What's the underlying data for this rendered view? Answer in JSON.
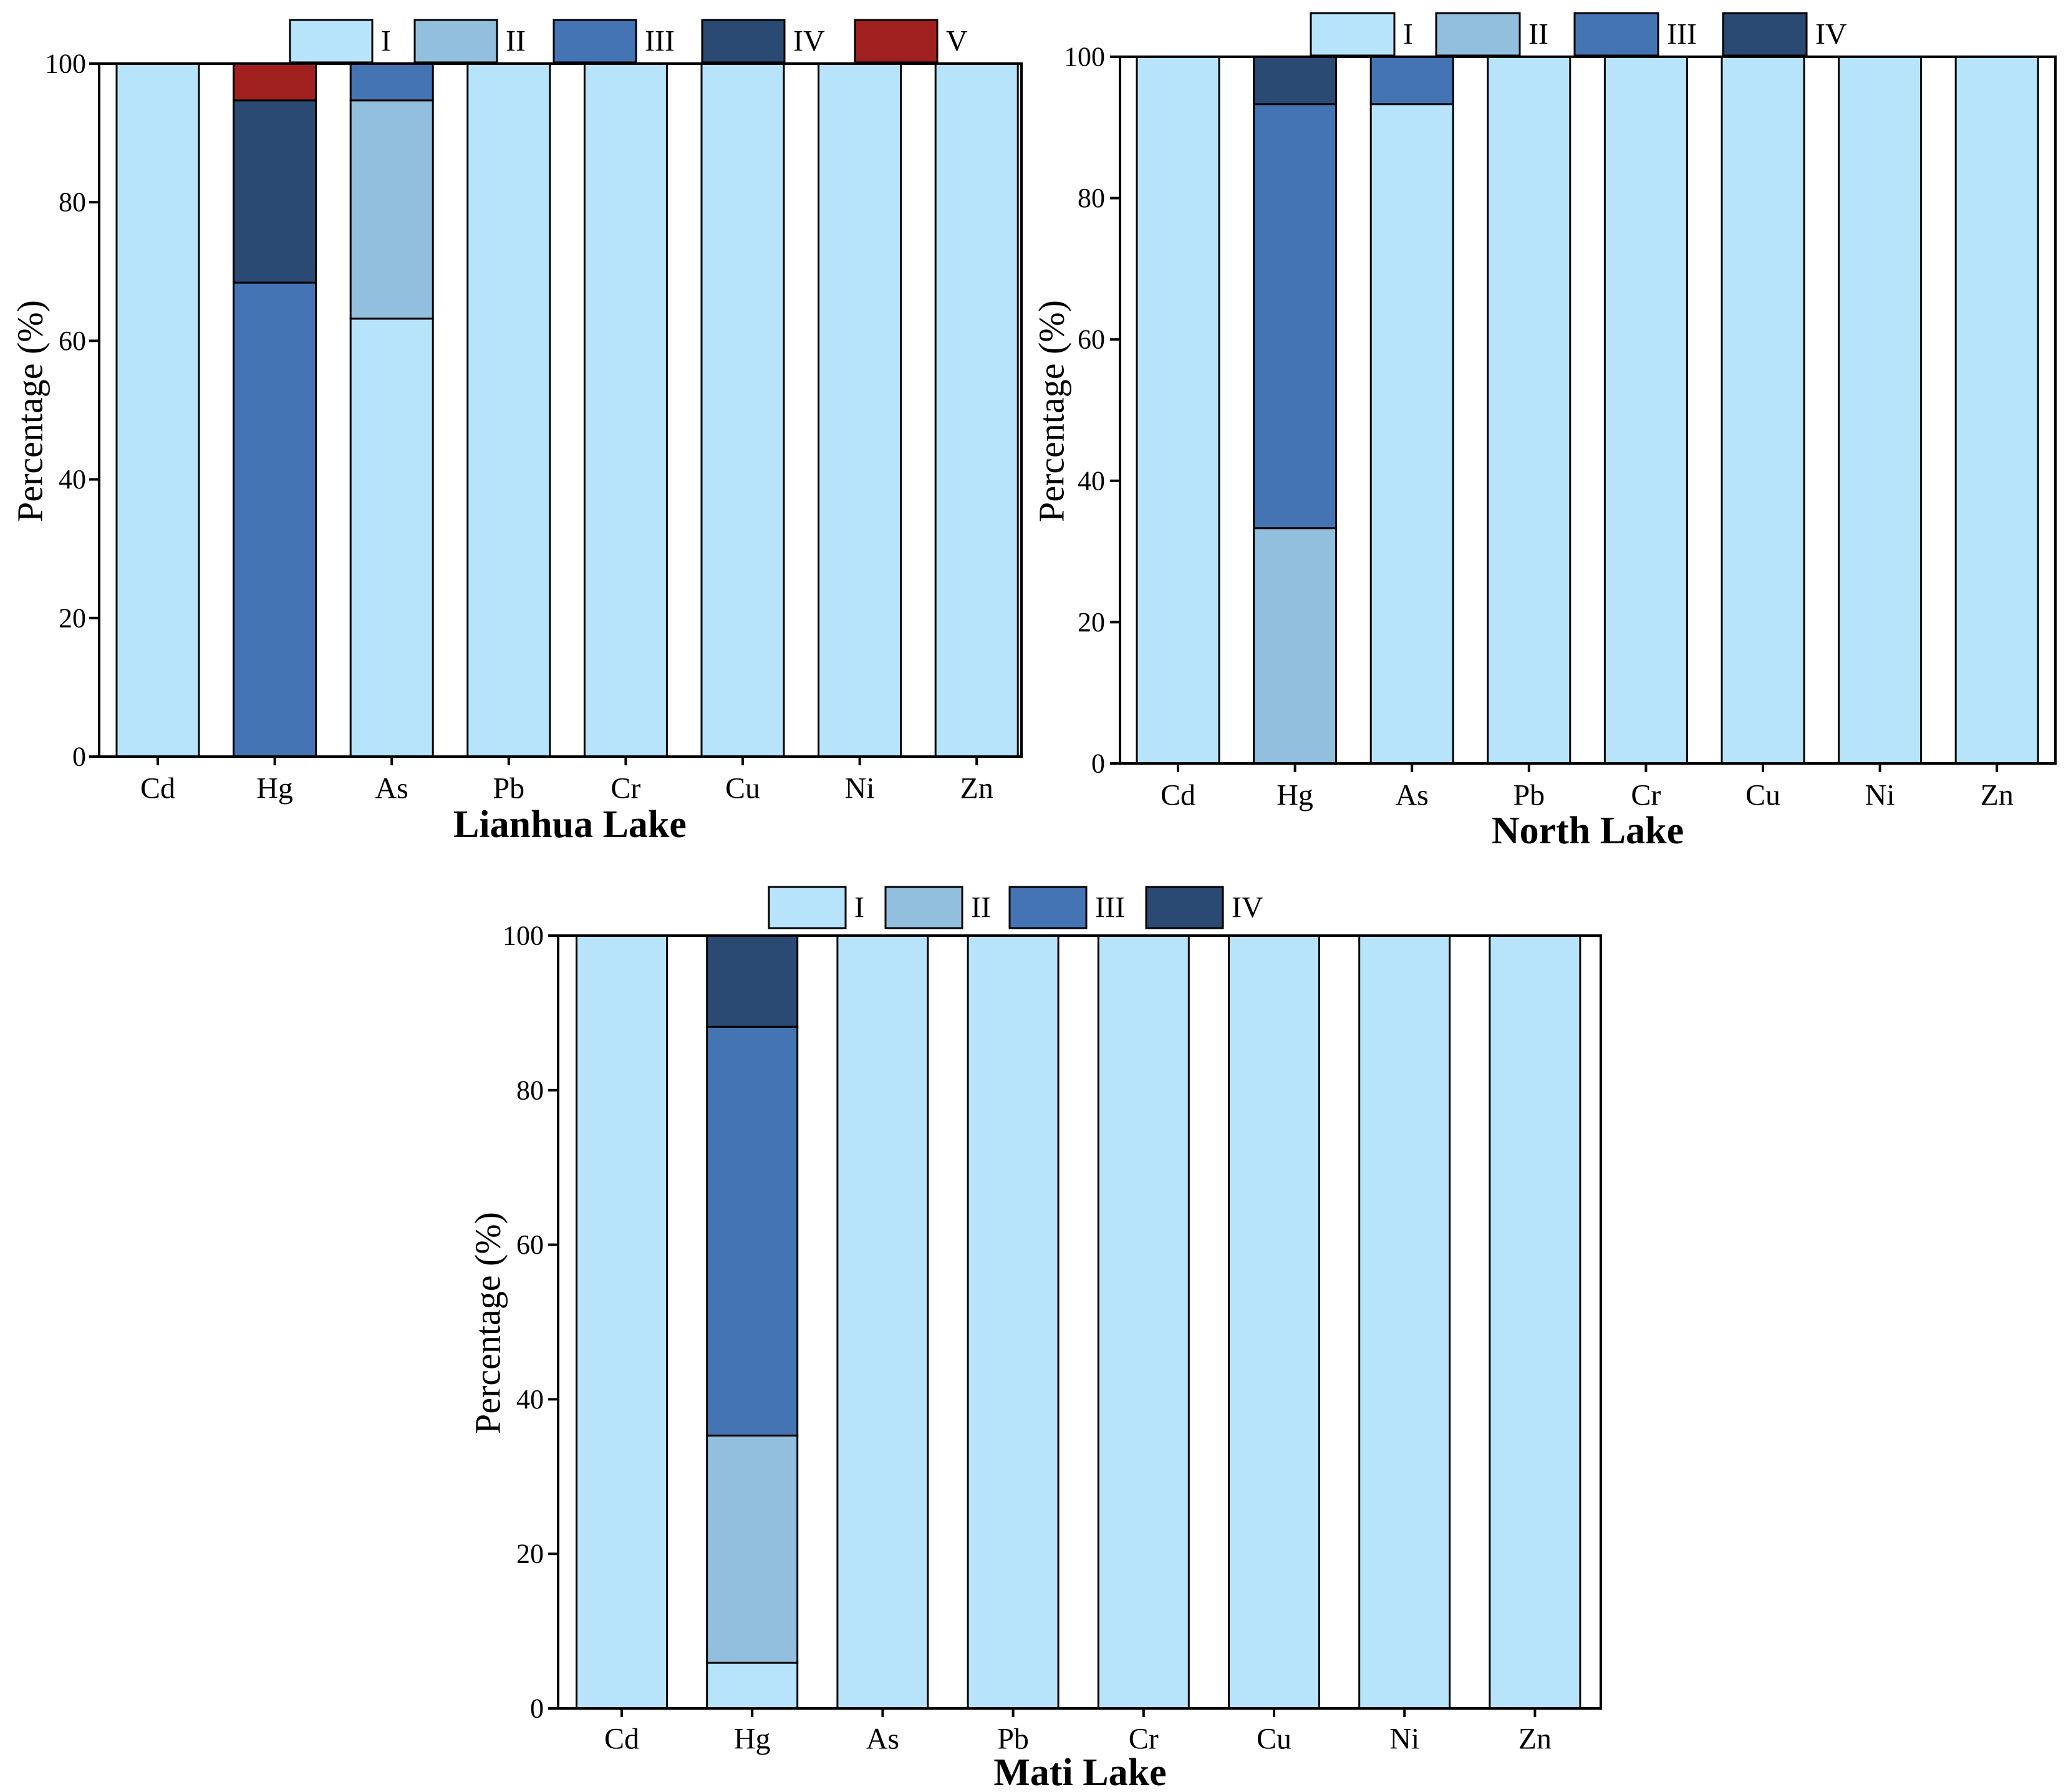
{
  "chart_data": [
    {
      "type": "bar",
      "stacked": true,
      "title": "Lianhua Lake",
      "ylabel": "Percentage (%)",
      "ylim": [
        0,
        100
      ],
      "yticks": [
        0,
        20,
        40,
        60,
        80,
        100
      ],
      "legend_position": "top",
      "categories": [
        "Cd",
        "Hg",
        "As",
        "Pb",
        "Cr",
        "Cu",
        "Ni",
        "Zn"
      ],
      "series": [
        {
          "name": "I",
          "color": "#b8e4fb",
          "values": [
            100,
            0,
            63.2,
            100,
            100,
            100,
            100,
            100
          ]
        },
        {
          "name": "II",
          "color": "#93bfdf",
          "values": [
            0,
            0,
            31.5,
            0,
            0,
            0,
            0,
            0
          ]
        },
        {
          "name": "III",
          "color": "#4574b4",
          "values": [
            0,
            68.4,
            5.3,
            0,
            0,
            0,
            0,
            0
          ]
        },
        {
          "name": "IV",
          "color": "#2b4a73",
          "values": [
            0,
            26.3,
            0,
            0,
            0,
            0,
            0,
            0
          ]
        },
        {
          "name": "V",
          "color": "#a01f1f",
          "values": [
            0,
            5.3,
            0,
            0,
            0,
            0,
            0,
            0
          ]
        }
      ]
    },
    {
      "type": "bar",
      "stacked": true,
      "title": "North Lake",
      "ylabel": "Percentage (%)",
      "ylim": [
        0,
        100
      ],
      "yticks": [
        0,
        20,
        40,
        60,
        80,
        100
      ],
      "legend_position": "top",
      "categories": [
        "Cd",
        "Hg",
        "As",
        "Pb",
        "Cr",
        "Cu",
        "Ni",
        "Zn"
      ],
      "series": [
        {
          "name": "I",
          "color": "#b8e4fb",
          "values": [
            100,
            0,
            93.3,
            100,
            100,
            100,
            100,
            100
          ]
        },
        {
          "name": "II",
          "color": "#93bfdf",
          "values": [
            0,
            33.3,
            0,
            0,
            0,
            0,
            0,
            0
          ]
        },
        {
          "name": "III",
          "color": "#4574b4",
          "values": [
            0,
            60.0,
            6.7,
            0,
            0,
            0,
            0,
            0
          ]
        },
        {
          "name": "IV",
          "color": "#2b4a73",
          "values": [
            0,
            6.7,
            0,
            0,
            0,
            0,
            0,
            0
          ]
        }
      ]
    },
    {
      "type": "bar",
      "stacked": true,
      "title": "Mati Lake",
      "ylabel": "Percentage (%)",
      "ylim": [
        0,
        100
      ],
      "yticks": [
        0,
        20,
        40,
        60,
        80,
        100
      ],
      "legend_position": "top",
      "categories": [
        "Cd",
        "Hg",
        "As",
        "Pb",
        "Cr",
        "Cu",
        "Ni",
        "Zn"
      ],
      "series": [
        {
          "name": "I",
          "color": "#b8e4fb",
          "values": [
            100,
            5.9,
            100,
            100,
            100,
            100,
            100,
            100
          ]
        },
        {
          "name": "II",
          "color": "#93bfdf",
          "values": [
            0,
            29.4,
            0,
            0,
            0,
            0,
            0,
            0
          ]
        },
        {
          "name": "III",
          "color": "#4574b4",
          "values": [
            0,
            52.9,
            0,
            0,
            0,
            0,
            0,
            0
          ]
        },
        {
          "name": "IV",
          "color": "#2b4a73",
          "values": [
            0,
            11.8,
            0,
            0,
            0,
            0,
            0,
            0
          ]
        }
      ]
    }
  ]
}
